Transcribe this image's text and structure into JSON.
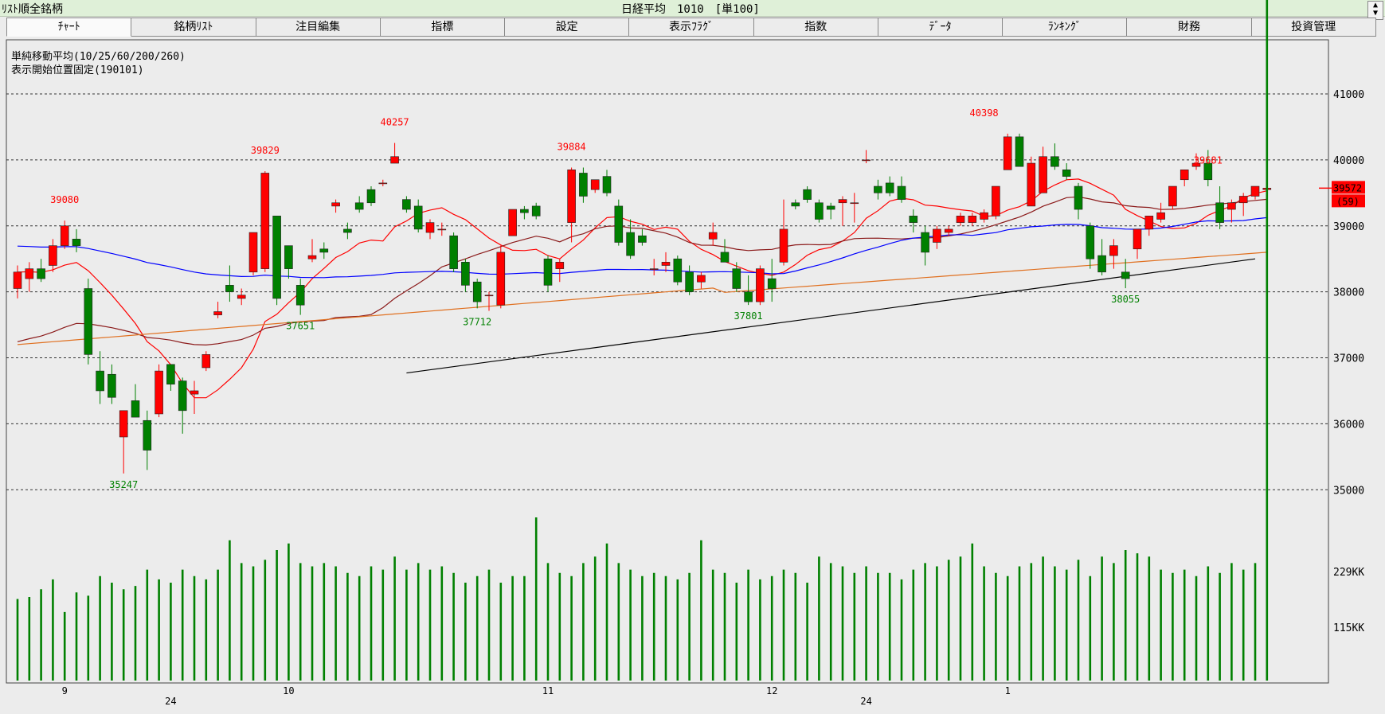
{
  "titlebar": {
    "left": "ﾘｽﾄ順全銘柄",
    "center": "日経平均　1010　[単100]"
  },
  "tabs": [
    "ﾁｬｰﾄ",
    "銘柄ﾘｽﾄ",
    "注目編集",
    "指標",
    "設定",
    "表示ﾌﾗｸﾞ",
    "指数",
    "ﾃﾞｰﾀ",
    "ﾗﾝｷﾝｸﾞ",
    "財務",
    "投資管理"
  ],
  "indicator_labels": {
    "ma": "単純移動平均(10/25/60/200/260)",
    "fixed": "表示開始位置固定(190101)"
  },
  "colors": {
    "up": "#ff0000",
    "down": "#008000",
    "ma10": "#ff0000",
    "ma25": "#8b1a1a",
    "ma60": "#0000ff",
    "ma200": "#e07020",
    "trend": "#000000",
    "volume": "#008000"
  },
  "chart_data": {
    "type": "candlestick",
    "price_axis": {
      "ticks": [
        35000,
        36000,
        37000,
        38000,
        39000,
        40000,
        41000
      ],
      "range": [
        34400,
        41700
      ]
    },
    "volume_axis": {
      "tick_labels": [
        "229KK",
        "115KK"
      ]
    },
    "x_labels": [
      {
        "label": "9",
        "index": 4
      },
      {
        "label": "24",
        "index": 13
      },
      {
        "label": "10",
        "index": 23
      },
      {
        "label": "11",
        "index": 45
      },
      {
        "label": "12",
        "index": 64
      },
      {
        "label": "24",
        "index": 72
      },
      {
        "label": "1",
        "index": 84
      }
    ],
    "last_price": "39572",
    "last_change": "(59)",
    "annotations_high": [
      {
        "label": "39080",
        "index": 4,
        "value": 39080
      },
      {
        "label": "39829",
        "index": 21,
        "value": 39829
      },
      {
        "label": "40257",
        "index": 32,
        "value": 40257
      },
      {
        "label": "39884",
        "index": 47,
        "value": 39884
      },
      {
        "label": "40398",
        "index": 82,
        "value": 40398
      },
      {
        "label": "39681",
        "index": 101,
        "value": 39681
      }
    ],
    "annotations_low": [
      {
        "label": "35247",
        "index": 9,
        "value": 35247
      },
      {
        "label": "37651",
        "index": 24,
        "value": 37651
      },
      {
        "label": "37712",
        "index": 39,
        "value": 37712
      },
      {
        "label": "37801",
        "index": 62,
        "value": 37801
      },
      {
        "label": "38055",
        "index": 94,
        "value": 38055
      }
    ],
    "candles": [
      [
        38050,
        38400,
        37900,
        38300
      ],
      [
        38200,
        38450,
        38000,
        38350
      ],
      [
        38350,
        38500,
        38150,
        38200
      ],
      [
        38400,
        38800,
        38300,
        38700
      ],
      [
        38700,
        39080,
        38650,
        39000
      ],
      [
        38800,
        38950,
        38600,
        38700
      ],
      [
        38050,
        38200,
        36900,
        37050
      ],
      [
        36800,
        37100,
        36300,
        36500
      ],
      [
        36750,
        36900,
        36300,
        36400
      ],
      [
        35800,
        36200,
        35247,
        36200
      ],
      [
        36350,
        36600,
        36100,
        36100
      ],
      [
        36050,
        36200,
        35300,
        35600
      ],
      [
        36150,
        36900,
        36100,
        36800
      ],
      [
        36900,
        36900,
        36500,
        36600
      ],
      [
        36650,
        36700,
        35850,
        36200
      ],
      [
        36450,
        36650,
        36150,
        36500
      ],
      [
        36850,
        37100,
        36800,
        37050
      ],
      [
        37650,
        37850,
        37600,
        37700
      ],
      [
        38100,
        38400,
        37850,
        38000
      ],
      [
        37900,
        38050,
        37800,
        37950
      ],
      [
        38300,
        38900,
        38250,
        38900
      ],
      [
        38350,
        39829,
        38300,
        39800
      ],
      [
        39150,
        39150,
        37800,
        37900
      ],
      [
        38700,
        38700,
        38200,
        38350
      ],
      [
        38100,
        38200,
        37651,
        37800
      ],
      [
        38500,
        38800,
        38450,
        38550
      ],
      [
        38650,
        38750,
        38500,
        38600
      ],
      [
        39300,
        39400,
        39200,
        39350
      ],
      [
        38950,
        39050,
        38800,
        38900
      ],
      [
        39350,
        39450,
        39200,
        39250
      ],
      [
        39550,
        39600,
        39300,
        39350
      ],
      [
        39650,
        39700,
        39600,
        39650
      ],
      [
        39950,
        40257,
        39950,
        40050
      ],
      [
        39400,
        39450,
        39200,
        39250
      ],
      [
        39300,
        39400,
        38900,
        38950
      ],
      [
        38900,
        39100,
        38800,
        39050
      ],
      [
        38950,
        39050,
        38850,
        38950
      ],
      [
        38850,
        38900,
        38300,
        38350
      ],
      [
        38450,
        38500,
        38000,
        38100
      ],
      [
        38150,
        38200,
        37750,
        37850
      ],
      [
        37950,
        38000,
        37712,
        37950
      ],
      [
        37800,
        38700,
        37750,
        38600
      ],
      [
        38850,
        39250,
        38850,
        39250
      ],
      [
        39250,
        39300,
        39100,
        39200
      ],
      [
        39300,
        39350,
        39100,
        39150
      ],
      [
        38500,
        38550,
        38000,
        38100
      ],
      [
        38350,
        38500,
        38150,
        38450
      ],
      [
        39050,
        39884,
        38750,
        39850
      ],
      [
        39800,
        39884,
        39350,
        39450
      ],
      [
        39550,
        39700,
        39500,
        39700
      ],
      [
        39750,
        39850,
        39450,
        39500
      ],
      [
        39300,
        39400,
        38700,
        38750
      ],
      [
        38900,
        39100,
        38500,
        38550
      ],
      [
        38850,
        38950,
        38700,
        38750
      ],
      [
        38350,
        38500,
        38250,
        38350
      ],
      [
        38400,
        38600,
        38300,
        38450
      ],
      [
        38500,
        38550,
        38100,
        38150
      ],
      [
        38300,
        38400,
        37950,
        38000
      ],
      [
        38150,
        38300,
        38050,
        38250
      ],
      [
        38800,
        39050,
        38700,
        38900
      ],
      [
        38600,
        38800,
        38450,
        38450
      ],
      [
        38350,
        38450,
        38000,
        38050
      ],
      [
        38000,
        38250,
        37801,
        37850
      ],
      [
        37850,
        38400,
        37800,
        38350
      ],
      [
        38200,
        38500,
        37850,
        38050
      ],
      [
        38450,
        39400,
        38400,
        38950
      ],
      [
        39350,
        39400,
        39250,
        39300
      ],
      [
        39550,
        39600,
        39350,
        39400
      ],
      [
        39350,
        39400,
        39050,
        39100
      ],
      [
        39300,
        39350,
        39100,
        39250
      ],
      [
        39350,
        39450,
        39000,
        39400
      ],
      [
        39350,
        39500,
        39050,
        39350
      ],
      [
        40000,
        40150,
        39950,
        40000
      ],
      [
        39600,
        39700,
        39400,
        39500
      ],
      [
        39650,
        39750,
        39450,
        39500
      ],
      [
        39600,
        39750,
        39350,
        39400
      ],
      [
        39150,
        39250,
        38900,
        39050
      ],
      [
        38900,
        39000,
        38400,
        38600
      ],
      [
        38750,
        39000,
        38650,
        38950
      ],
      [
        38900,
        39000,
        38850,
        38950
      ],
      [
        39050,
        39200,
        39000,
        39150
      ],
      [
        39050,
        39200,
        39000,
        39150
      ],
      [
        39100,
        39250,
        39050,
        39200
      ],
      [
        39150,
        39600,
        39100,
        39600
      ],
      [
        39850,
        40398,
        39850,
        40350
      ],
      [
        40350,
        40398,
        39900,
        39900
      ],
      [
        39300,
        40050,
        39300,
        39950
      ],
      [
        39500,
        40200,
        39500,
        40050
      ],
      [
        40050,
        40250,
        39850,
        39900
      ],
      [
        39850,
        39950,
        39700,
        39750
      ],
      [
        39600,
        39650,
        39100,
        39250
      ],
      [
        39000,
        39050,
        38350,
        38500
      ],
      [
        38550,
        38800,
        38250,
        38300
      ],
      [
        38550,
        38800,
        38350,
        38700
      ],
      [
        38300,
        38500,
        38055,
        38200
      ],
      [
        38650,
        38950,
        38500,
        38950
      ],
      [
        38950,
        39150,
        38850,
        39150
      ],
      [
        39100,
        39350,
        39050,
        39200
      ],
      [
        39300,
        39600,
        39250,
        39600
      ],
      [
        39700,
        39850,
        39600,
        39850
      ],
      [
        39900,
        40100,
        39850,
        39950
      ],
      [
        39950,
        40150,
        39600,
        39700
      ],
      [
        39350,
        39600,
        38950,
        39050
      ],
      [
        39250,
        39400,
        39050,
        39350
      ],
      [
        39350,
        39500,
        39150,
        39450
      ],
      [
        39450,
        39600,
        39400,
        39600
      ],
      [
        39550,
        39681,
        39450,
        39572
      ]
    ],
    "volumes": [
      125,
      128,
      140,
      155,
      105,
      135,
      130,
      160,
      150,
      140,
      145,
      170,
      155,
      150,
      170,
      160,
      155,
      170,
      215,
      180,
      175,
      185,
      200,
      210,
      180,
      175,
      180,
      175,
      165,
      160,
      175,
      170,
      190,
      170,
      180,
      170,
      175,
      165,
      150,
      160,
      170,
      150,
      160,
      160,
      250,
      180,
      165,
      160,
      180,
      190,
      210,
      180,
      170,
      160,
      165,
      160,
      155,
      165,
      215,
      170,
      165,
      150,
      170,
      155,
      160,
      170,
      165,
      150,
      190,
      180,
      175,
      165,
      175,
      165,
      165,
      155,
      170,
      180,
      175,
      185,
      190,
      210,
      175,
      165,
      160,
      175,
      180,
      190,
      175,
      170,
      185,
      160,
      190,
      180,
      200,
      195,
      190,
      170,
      165,
      170,
      160,
      175,
      165,
      180,
      170,
      180
    ],
    "trend_line": {
      "from": {
        "index": 33,
        "value": 36770
      },
      "to": {
        "index": 105,
        "value": 38500
      }
    }
  }
}
